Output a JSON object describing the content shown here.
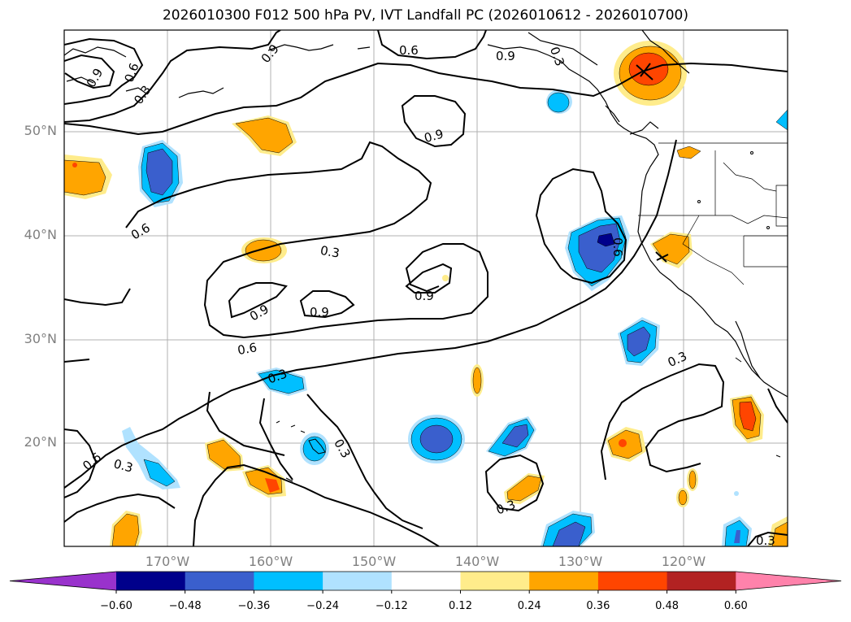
{
  "title": "2026010300 F012 500 hPa PV, IVT Landfall PC (2026010612 - 2026010700)",
  "lat_labels": [
    "50°N",
    "40°N",
    "30°N",
    "20°N"
  ],
  "lon_labels": [
    "170°W",
    "160°W",
    "150°W",
    "140°W",
    "130°W",
    "120°W"
  ],
  "colorbar": {
    "ticks": [
      "−0.60",
      "−0.48",
      "−0.36",
      "−0.24",
      "−0.12",
      "0.12",
      "0.24",
      "0.36",
      "0.48",
      "0.60"
    ],
    "colors": [
      "#9932cc",
      "#00008b",
      "#3a5fcd",
      "#00bfff",
      "#b0e2ff",
      "#ffffff",
      "#ffec8b",
      "#ffa500",
      "#ff4500",
      "#b22222",
      "#ff82ab"
    ]
  },
  "contour_labels": [
    "0.9",
    "0.6",
    "0.3",
    "0.6",
    "0.9",
    "0.9",
    "0.6",
    "0.6",
    "0.3",
    "0.9",
    "0.9",
    "0.9",
    "0.6",
    "0.3",
    "0.3",
    "0.9",
    "0.3",
    "0.6",
    "0.3",
    "0.3",
    "0.3",
    "0.3"
  ]
}
